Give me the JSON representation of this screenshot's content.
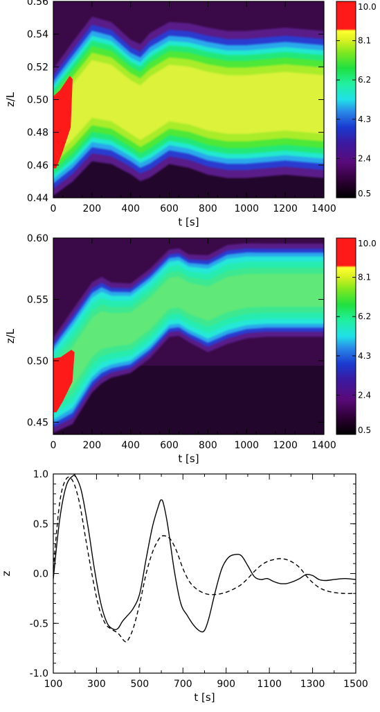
{
  "chart_data": [
    {
      "type": "heatmap",
      "title": "",
      "xlabel": "t [s]",
      "ylabel": "z/L",
      "xlim": [
        0,
        1400
      ],
      "ylim": [
        0.44,
        0.56
      ],
      "xticks": [
        "0",
        "200",
        "400",
        "600",
        "800",
        "1000",
        "1200",
        "1400"
      ],
      "yticks": [
        "0.44",
        "0.46",
        "0.48",
        "0.50",
        "0.52",
        "0.54",
        "0.56"
      ],
      "colorbar": {
        "ticks": [
          "10.0",
          "8.1",
          "6.2",
          "4.3",
          "2.4",
          "0.5"
        ],
        "range": [
          0.5,
          10.0
        ]
      },
      "band": {
        "t": [
          0,
          100,
          200,
          300,
          400,
          450,
          500,
          600,
          700,
          800,
          900,
          1000,
          1100,
          1200,
          1300,
          1400
        ],
        "upper": [
          0.505,
          0.52,
          0.535,
          0.532,
          0.522,
          0.519,
          0.525,
          0.532,
          0.531,
          0.528,
          0.526,
          0.526,
          0.527,
          0.528,
          0.527,
          0.526
        ],
        "lower": [
          0.455,
          0.465,
          0.478,
          0.476,
          0.469,
          0.465,
          0.468,
          0.476,
          0.474,
          0.47,
          0.468,
          0.468,
          0.469,
          0.47,
          0.469,
          0.468
        ]
      }
    },
    {
      "type": "heatmap",
      "title": "",
      "xlabel": "t [s]",
      "ylabel": "z/L",
      "xlim": [
        0,
        1400
      ],
      "ylim": [
        0.44,
        0.6
      ],
      "xticks": [
        "0",
        "200",
        "400",
        "600",
        "800",
        "1000",
        "1200",
        "1400"
      ],
      "yticks": [
        "0.45",
        "0.50",
        "0.55",
        "0.60"
      ],
      "colorbar": {
        "ticks": [
          "10.0",
          "8.1",
          "6.2",
          "4.3",
          "2.4",
          "0.5"
        ],
        "range": [
          0.5,
          10.0
        ]
      },
      "band": {
        "t": [
          0,
          100,
          200,
          250,
          300,
          400,
          500,
          600,
          650,
          700,
          800,
          900,
          1000,
          1100,
          1200,
          1300,
          1400
        ],
        "upper": [
          0.505,
          0.525,
          0.548,
          0.553,
          0.55,
          0.55,
          0.562,
          0.578,
          0.579,
          0.574,
          0.572,
          0.58,
          0.582,
          0.582,
          0.582,
          0.582,
          0.582
        ],
        "lower": [
          0.455,
          0.465,
          0.49,
          0.497,
          0.5,
          0.503,
          0.515,
          0.532,
          0.533,
          0.528,
          0.521,
          0.528,
          0.532,
          0.533,
          0.533,
          0.533,
          0.533
        ]
      }
    },
    {
      "type": "line",
      "title": "",
      "xlabel": "t [s]",
      "ylabel": "z",
      "xlim": [
        100,
        1500
      ],
      "ylim": [
        -1.0,
        1.0
      ],
      "xticks": [
        "100",
        "300",
        "500",
        "700",
        "900",
        "1100",
        "1300",
        "1500"
      ],
      "yticks": [
        "-1.0",
        "-0.5",
        "0.0",
        "0.5",
        "1.0"
      ],
      "series": [
        {
          "style": "solid",
          "x": [
            100,
            130,
            160,
            190,
            205,
            230,
            260,
            290,
            320,
            350,
            380,
            400,
            420,
            440,
            470,
            500,
            530,
            560,
            590,
            600,
            610,
            630,
            660,
            690,
            720,
            750,
            780,
            800,
            820,
            850,
            880,
            910,
            940,
            970,
            1000,
            1030,
            1060,
            1090,
            1120,
            1150,
            1180,
            1210,
            1240,
            1270,
            1300,
            1330,
            1360,
            1400,
            1450,
            1500
          ],
          "y": [
            -0.05,
            0.55,
            0.88,
            0.98,
            0.97,
            0.83,
            0.48,
            0.05,
            -0.3,
            -0.5,
            -0.56,
            -0.55,
            -0.48,
            -0.43,
            -0.35,
            -0.2,
            0.15,
            0.48,
            0.7,
            0.74,
            0.7,
            0.48,
            0.03,
            -0.3,
            -0.42,
            -0.52,
            -0.58,
            -0.57,
            -0.45,
            -0.18,
            0.05,
            0.16,
            0.19,
            0.18,
            0.08,
            -0.03,
            -0.06,
            -0.05,
            -0.08,
            -0.1,
            -0.1,
            -0.08,
            -0.05,
            -0.01,
            -0.02,
            -0.06,
            -0.07,
            -0.06,
            -0.05,
            -0.06
          ]
        },
        {
          "style": "dashed",
          "x": [
            100,
            130,
            160,
            190,
            220,
            250,
            280,
            310,
            340,
            370,
            400,
            430,
            445,
            470,
            500,
            530,
            560,
            590,
            610,
            640,
            670,
            700,
            730,
            760,
            790,
            820,
            850,
            880,
            910,
            940,
            970,
            1000,
            1030,
            1060,
            1090,
            1120,
            1150,
            1180,
            1210,
            1240,
            1270,
            1300,
            1330,
            1360,
            1400,
            1450,
            1500
          ],
          "y": [
            0.05,
            0.72,
            0.95,
            0.93,
            0.72,
            0.35,
            -0.02,
            -0.33,
            -0.5,
            -0.56,
            -0.6,
            -0.68,
            -0.67,
            -0.55,
            -0.3,
            0.0,
            0.22,
            0.35,
            0.38,
            0.35,
            0.23,
            0.05,
            -0.08,
            -0.15,
            -0.19,
            -0.21,
            -0.21,
            -0.2,
            -0.18,
            -0.15,
            -0.11,
            -0.05,
            0.02,
            0.08,
            0.12,
            0.14,
            0.15,
            0.14,
            0.11,
            0.06,
            -0.02,
            -0.09,
            -0.14,
            -0.17,
            -0.19,
            -0.2,
            -0.2
          ]
        }
      ]
    }
  ]
}
